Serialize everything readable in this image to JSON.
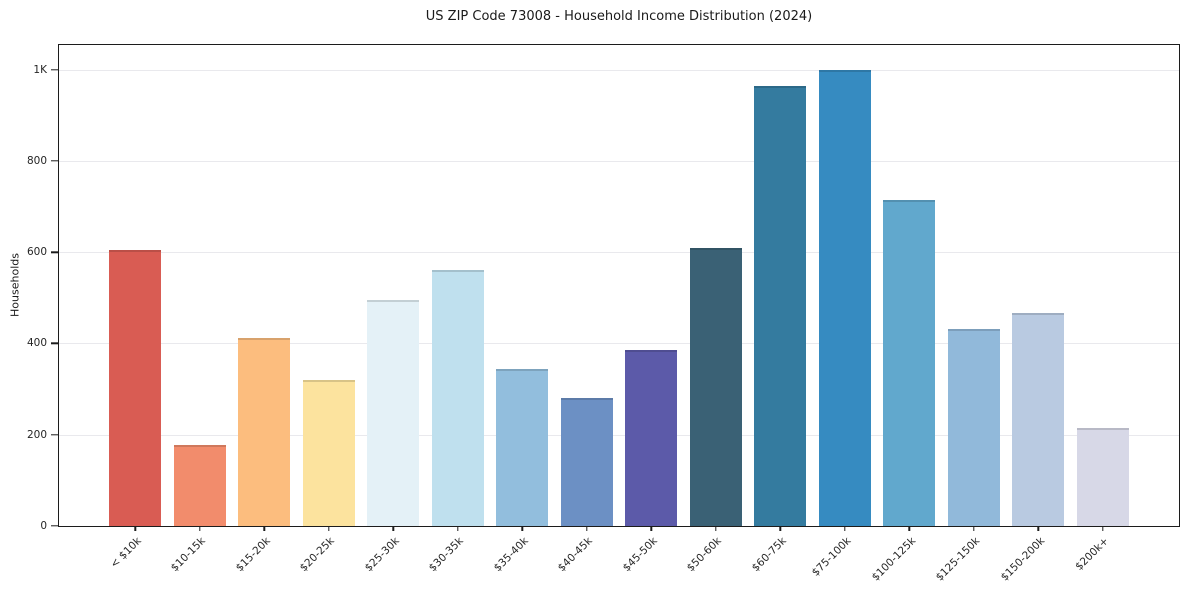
{
  "chart_data": {
    "type": "bar",
    "title": "US ZIP Code 73008 - Household Income Distribution (2024)",
    "xlabel": "",
    "ylabel": "Households",
    "categories": [
      "< $10k",
      "$10-15k",
      "$15-20k",
      "$20-25k",
      "$25-30k",
      "$30-35k",
      "$35-40k",
      "$40-45k",
      "$45-50k",
      "$50-60k",
      "$60-75k",
      "$75-100k",
      "$100-125k",
      "$125-150k",
      "$150-200k",
      "$200k+"
    ],
    "values": [
      605,
      177,
      413,
      320,
      495,
      562,
      345,
      280,
      385,
      610,
      965,
      1000,
      715,
      432,
      467,
      215
    ],
    "bar_colors": [
      "#d95c53",
      "#f28c6c",
      "#fcbd7e",
      "#fce39e",
      "#e4f1f7",
      "#bfe0ee",
      "#92bedd",
      "#6c90c4",
      "#5c5aa9",
      "#3a6175",
      "#347b9f",
      "#368bc1",
      "#61a8cd",
      "#91b9da",
      "#b9cae1",
      "#d7d8e7"
    ],
    "ytick_values": [
      0,
      200,
      400,
      600,
      800,
      1000
    ],
    "ytick_labels": [
      "0",
      "200",
      "400",
      "600",
      "800",
      "1K"
    ],
    "ylim": [
      0,
      1054
    ],
    "grid": "horizontal-only",
    "legend": "none",
    "colors": {
      "axis": "#1c1c1c",
      "grid": "#e9e9ed",
      "text": "#262626",
      "background": "#ffffff",
      "bar_top_edge": "rgba(0,0,0,0.14)"
    }
  }
}
